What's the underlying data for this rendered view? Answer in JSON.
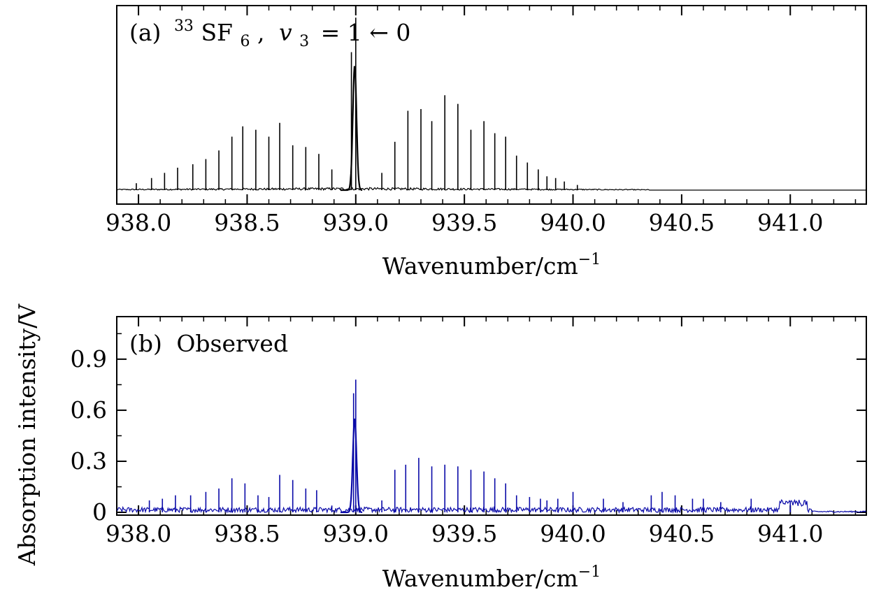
{
  "figure": {
    "ylabel": "Absorption intensity/V",
    "xlabel_base": "Wavenumber/cm",
    "xlabel_exp": "−1"
  },
  "chart_data": [
    {
      "type": "line",
      "id": "a",
      "panel_label": "(a)",
      "title_parts": {
        "iso": "33",
        "molecule": "SF",
        "sub": "6",
        "comma": ",",
        "v": "v",
        "vsub": "3",
        "transition": "= 1 ← 0"
      },
      "xlabel": "Wavenumber/cm⁻¹",
      "xlim": [
        937.9,
        941.35
      ],
      "ylim": [
        0,
        1.07
      ],
      "x_ticks": [
        "938.0",
        "938.5",
        "939.0",
        "939.5",
        "940.0",
        "940.5",
        "941.0"
      ],
      "y_ticks": [],
      "baseline": 0,
      "color": "#000000",
      "series": [
        {
          "x": [
            938.43,
            938.48,
            938.54,
            938.6,
            938.65,
            938.71,
            938.77,
            938.83,
            938.89,
            938.98,
            939.0,
            939.12,
            939.18,
            939.24,
            939.3,
            939.35,
            939.41,
            939.47,
            939.53,
            939.59,
            939.64,
            939.69,
            939.74,
            939.79,
            939.84,
            939.88,
            938.37,
            938.31,
            938.25,
            938.18,
            938.12,
            938.06,
            937.99,
            939.92,
            939.96,
            940.02
          ],
          "values": [
            0.31,
            0.37,
            0.35,
            0.31,
            0.39,
            0.26,
            0.25,
            0.21,
            0.12,
            0.8,
            1.0,
            0.1,
            0.28,
            0.46,
            0.47,
            0.4,
            0.55,
            0.5,
            0.35,
            0.4,
            0.33,
            0.31,
            0.2,
            0.16,
            0.12,
            0.08,
            0.23,
            0.18,
            0.15,
            0.13,
            0.1,
            0.07,
            0.04,
            0.07,
            0.05,
            0.03
          ]
        }
      ]
    },
    {
      "type": "line",
      "id": "b",
      "panel_label": "(b)",
      "title": "Observed",
      "xlabel": "Wavenumber/cm⁻¹",
      "xlim": [
        937.9,
        941.35
      ],
      "ylim": [
        0,
        1.15
      ],
      "x_ticks": [
        "938.0",
        "938.5",
        "939.0",
        "939.5",
        "940.0",
        "940.5",
        "941.0"
      ],
      "y_ticks": [
        "0",
        "0.3",
        "0.6",
        "0.9"
      ],
      "color": "#0a0aa8",
      "series": [
        {
          "x": [
            938.43,
            938.49,
            938.55,
            938.6,
            938.65,
            938.71,
            938.77,
            938.82,
            938.89,
            938.99,
            939.0,
            939.12,
            939.18,
            939.23,
            939.29,
            939.35,
            939.41,
            939.47,
            939.53,
            939.59,
            939.64,
            939.69,
            939.74,
            939.8,
            939.85,
            939.88,
            938.37,
            938.31,
            938.24,
            938.17,
            938.11,
            938.05,
            939.93,
            940.0,
            940.14,
            940.23,
            940.36,
            940.41,
            940.47,
            940.55,
            940.6,
            940.68,
            940.82,
            941.0
          ],
          "values": [
            0.2,
            0.17,
            0.1,
            0.09,
            0.22,
            0.19,
            0.14,
            0.13,
            0.04,
            0.7,
            0.78,
            0.07,
            0.25,
            0.28,
            0.32,
            0.27,
            0.28,
            0.27,
            0.25,
            0.24,
            0.2,
            0.17,
            0.1,
            0.09,
            0.08,
            0.07,
            0.14,
            0.12,
            0.1,
            0.1,
            0.08,
            0.07,
            0.08,
            0.12,
            0.08,
            0.06,
            0.1,
            0.12,
            0.1,
            0.08,
            0.08,
            0.06,
            0.08,
            0.06
          ]
        }
      ]
    }
  ]
}
